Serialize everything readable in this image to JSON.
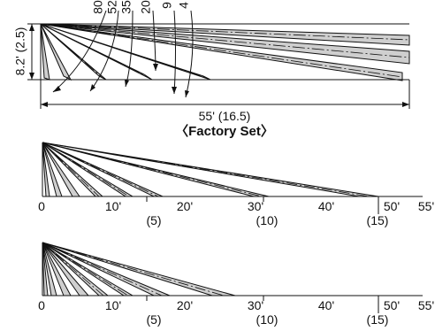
{
  "colors": {
    "band": "#cfcfcf",
    "line": "#111111",
    "background": "#ffffff"
  },
  "top": {
    "height_label": "8.2' (2.5)",
    "length_label": "55' (16.5)",
    "angle_labels": [
      "80",
      "52",
      "35",
      "20",
      "9",
      "4"
    ]
  },
  "factory_set_label": "〈Factory Set〉",
  "middle": {
    "ft_ticks": [
      "0",
      "10'",
      "20'",
      "30'",
      "40'",
      "50'",
      "55'"
    ],
    "m_ticks": [
      "(5)",
      "(10)",
      "(15)"
    ]
  },
  "bottom": {
    "ft_ticks": [
      "0",
      "10'",
      "20'",
      "30'",
      "40'",
      "50'",
      "55'"
    ],
    "m_ticks": [
      "(5)",
      "(10)",
      "(15)"
    ]
  }
}
